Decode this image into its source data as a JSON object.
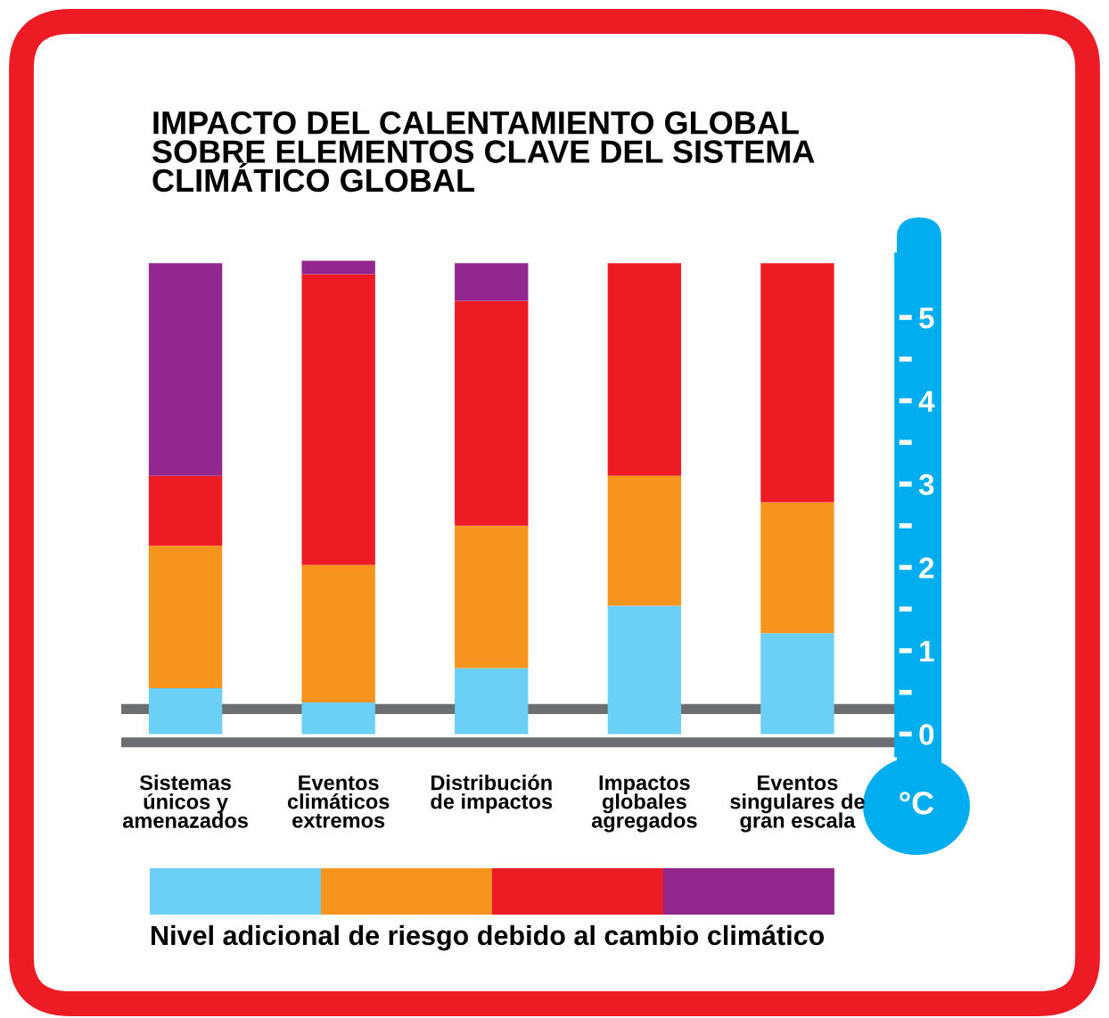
{
  "chart_data": {
    "type": "bar",
    "stacked": true,
    "title": "IMPACTO DEL CALENTAMIENTO GLOBAL\nSOBRE ELEMENTOS CLAVE DEL SISTEMA\nCLIMÁTICO GLOBAL",
    "ylabel": "°C",
    "legend_title": "Nivel adicional de riesgo debido al cambio climático",
    "categories": [
      "Sistemas\núnicos y\namenazados",
      "Eventos\nclimáticos\nextremos",
      "Distribución\nde impactos",
      "Impactos\nglobales\nagregados",
      "Eventos\nsingulares de\ngran escala"
    ],
    "series": [
      {
        "color": "#6bcff6",
        "values": [
          0.55,
          0.38,
          0.79,
          1.54,
          1.21
        ]
      },
      {
        "color": "#f7941d",
        "values": [
          1.71,
          1.65,
          1.71,
          1.56,
          1.57
        ]
      },
      {
        "color": "#ed1c24",
        "values": [
          0.84,
          3.49,
          2.7,
          2.55,
          2.87
        ]
      },
      {
        "color": "#92278f",
        "values": [
          2.55,
          0.16,
          0.45,
          0,
          0
        ]
      }
    ],
    "ylim": [
      -0.25,
      5.75
    ],
    "yticks": [
      0,
      {
        "value": 0.5,
        "label": null
      },
      1,
      {
        "value": 1.5,
        "label": null
      },
      2,
      {
        "value": 2.5,
        "label": null
      },
      3,
      {
        "value": 3.5,
        "label": null
      },
      4,
      {
        "value": 4.5,
        "label": null
      },
      5
    ],
    "ref_lines": [
      {
        "axis": "y",
        "value": -0.1,
        "color": "#6d6e71"
      },
      {
        "axis": "y",
        "value": 0.3,
        "color": "#6d6e71"
      }
    ],
    "grid": false
  }
}
